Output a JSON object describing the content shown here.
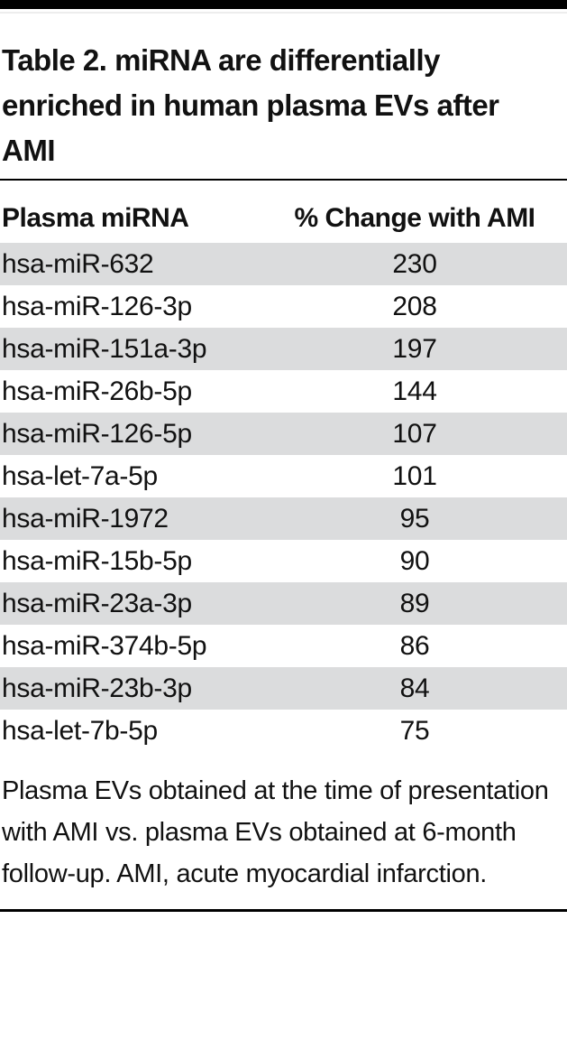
{
  "page": {
    "title": "Table 2. miRNA are differentially enriched in human plasma EVs after AMI"
  },
  "table": {
    "columns": [
      {
        "label": "Plasma miRNA"
      },
      {
        "label": "% Change with AMI"
      }
    ],
    "rows": [
      {
        "mirna": "hsa-miR-632",
        "change": "230"
      },
      {
        "mirna": "hsa-miR-126-3p",
        "change": "208"
      },
      {
        "mirna": "hsa-miR-151a-3p",
        "change": "197"
      },
      {
        "mirna": "hsa-miR-26b-5p",
        "change": "144"
      },
      {
        "mirna": "hsa-miR-126-5p",
        "change": "107"
      },
      {
        "mirna": "hsa-let-7a-5p",
        "change": "101"
      },
      {
        "mirna": "hsa-miR-1972",
        "change": "95"
      },
      {
        "mirna": "hsa-miR-15b-5p",
        "change": "90"
      },
      {
        "mirna": "hsa-miR-23a-3p",
        "change": "89"
      },
      {
        "mirna": "hsa-miR-374b-5p",
        "change": "86"
      },
      {
        "mirna": "hsa-miR-23b-3p",
        "change": "84"
      },
      {
        "mirna": "hsa-let-7b-5p",
        "change": "75"
      }
    ],
    "footnote": "Plasma EVs obtained at the time of presentation with AMI vs. plasma EVs obtained at 6-month follow-up. AMI, acute myocardial infarction."
  },
  "colors": {
    "row_shade": "#dbdcdd",
    "text": "#111111",
    "rule": "#000000"
  }
}
